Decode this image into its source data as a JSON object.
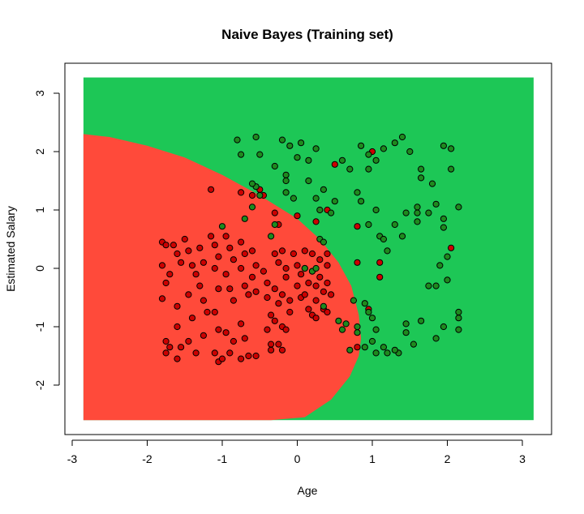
{
  "chart_data": {
    "type": "scatter",
    "title": "Naive Bayes (Training set)",
    "xlabel": "Age",
    "ylabel": "Estimated Salary",
    "xlim": [
      -3,
      3.3
    ],
    "ylim": [
      -2.8,
      3.5
    ],
    "x_ticks": [
      "-3",
      "-2",
      "-1",
      "0",
      "1",
      "2",
      "3"
    ],
    "y_ticks": [
      "-2",
      "-1",
      "0",
      "1",
      "2",
      "3"
    ],
    "region_extent": {
      "x": [
        -2.85,
        3.15
      ],
      "y": [
        -2.6,
        3.27
      ]
    },
    "decision_boundary": {
      "description": "ellipse-like boundary, red region on left",
      "points": [
        [
          -2.85,
          2.3
        ],
        [
          -2.5,
          2.25
        ],
        [
          -2.0,
          2.1
        ],
        [
          -1.5,
          1.9
        ],
        [
          -1.0,
          1.6
        ],
        [
          -0.5,
          1.25
        ],
        [
          0.0,
          0.85
        ],
        [
          0.3,
          0.5
        ],
        [
          0.55,
          0.1
        ],
        [
          0.72,
          -0.3
        ],
        [
          0.82,
          -0.8
        ],
        [
          0.85,
          -1.2
        ],
        [
          0.82,
          -1.5
        ],
        [
          0.7,
          -1.85
        ],
        [
          0.45,
          -2.25
        ],
        [
          0.1,
          -2.55
        ],
        [
          -0.35,
          -2.6
        ]
      ]
    },
    "colors": {
      "class_0_region": "#ff4a3a",
      "class_1_region": "#1dc756",
      "class_0_point": "#cc0000",
      "class_1_point": "#1e8a1e",
      "point_stroke": "#000000"
    },
    "series": [
      {
        "class": 0,
        "points": [
          [
            -1.8,
            0.45
          ],
          [
            -1.75,
            0.4
          ],
          [
            -1.8,
            0.05
          ],
          [
            -1.75,
            -0.25
          ],
          [
            -1.8,
            -0.52
          ],
          [
            -1.65,
            0.4
          ],
          [
            -1.6,
            0.25
          ],
          [
            -1.55,
            0.1
          ],
          [
            -1.7,
            -0.1
          ],
          [
            -1.6,
            -0.65
          ],
          [
            -1.6,
            -1.0
          ],
          [
            -1.75,
            -1.25
          ],
          [
            -1.7,
            -1.35
          ],
          [
            -1.75,
            -1.45
          ],
          [
            -1.55,
            -1.35
          ],
          [
            -1.6,
            -1.55
          ],
          [
            -1.5,
            0.5
          ],
          [
            -1.45,
            0.3
          ],
          [
            -1.4,
            0.05
          ],
          [
            -1.35,
            -0.1
          ],
          [
            -1.45,
            -0.45
          ],
          [
            -1.4,
            -0.85
          ],
          [
            -1.45,
            -1.25
          ],
          [
            -1.35,
            -1.45
          ],
          [
            -1.3,
            0.35
          ],
          [
            -1.25,
            0.1
          ],
          [
            -1.3,
            -0.3
          ],
          [
            -1.25,
            -0.55
          ],
          [
            -1.2,
            -0.75
          ],
          [
            -1.25,
            -1.15
          ],
          [
            -1.15,
            0.55
          ],
          [
            -1.1,
            0.4
          ],
          [
            -1.05,
            0.2
          ],
          [
            -1.1,
            0.0
          ],
          [
            -1.05,
            -0.35
          ],
          [
            -1.1,
            -0.75
          ],
          [
            -1.05,
            -1.05
          ],
          [
            -1.1,
            -1.45
          ],
          [
            -1.05,
            -1.6
          ],
          [
            -1.0,
            -1.55
          ],
          [
            -1.15,
            1.35
          ],
          [
            -0.95,
            0.55
          ],
          [
            -0.9,
            0.35
          ],
          [
            -0.85,
            0.15
          ],
          [
            -0.95,
            -0.1
          ],
          [
            -0.9,
            -0.35
          ],
          [
            -0.85,
            -0.55
          ],
          [
            -0.95,
            -1.1
          ],
          [
            -0.85,
            -1.25
          ],
          [
            -0.9,
            -1.45
          ],
          [
            -0.75,
            0.45
          ],
          [
            -0.7,
            0.25
          ],
          [
            -0.75,
            0.0
          ],
          [
            -0.7,
            -0.3
          ],
          [
            -0.65,
            -0.45
          ],
          [
            -0.75,
            -0.95
          ],
          [
            -0.7,
            -1.2
          ],
          [
            -0.75,
            -1.55
          ],
          [
            -0.6,
            0.3
          ],
          [
            -0.55,
            0.05
          ],
          [
            -0.6,
            -0.15
          ],
          [
            -0.55,
            -0.4
          ],
          [
            -0.65,
            -1.5
          ],
          [
            -0.55,
            -1.5
          ],
          [
            -0.5,
            1.35
          ],
          [
            -0.45,
            1.25
          ],
          [
            -0.45,
            -0.05
          ],
          [
            -0.4,
            -0.25
          ],
          [
            -0.4,
            -0.5
          ],
          [
            -0.35,
            -0.8
          ],
          [
            -0.4,
            -1.05
          ],
          [
            -0.35,
            -1.3
          ],
          [
            -0.35,
            -1.4
          ],
          [
            -0.3,
            0.95
          ],
          [
            -0.25,
            0.75
          ],
          [
            -0.3,
            0.25
          ],
          [
            -0.25,
            0.1
          ],
          [
            -0.3,
            -0.35
          ],
          [
            -0.25,
            -0.6
          ],
          [
            -0.3,
            -0.9
          ],
          [
            -0.2,
            -1.0
          ],
          [
            -0.25,
            -1.3
          ],
          [
            -0.2,
            -1.4
          ],
          [
            -0.2,
            0.3
          ],
          [
            -0.15,
            0.0
          ],
          [
            -0.15,
            -0.15
          ],
          [
            -0.2,
            -0.45
          ],
          [
            -0.1,
            -0.55
          ],
          [
            -0.1,
            -0.75
          ],
          [
            -0.15,
            -1.05
          ],
          [
            -0.05,
            0.25
          ],
          [
            0.0,
            0.05
          ],
          [
            0.05,
            -0.1
          ],
          [
            0.0,
            -0.3
          ],
          [
            0.05,
            -0.5
          ],
          [
            0.1,
            0.3
          ],
          [
            0.1,
            0.0
          ],
          [
            0.15,
            -0.25
          ],
          [
            0.1,
            -0.45
          ],
          [
            0.15,
            -0.7
          ],
          [
            0.2,
            0.25
          ],
          [
            0.2,
            -0.05
          ],
          [
            0.25,
            -0.3
          ],
          [
            0.25,
            -0.55
          ],
          [
            0.3,
            0.15
          ],
          [
            0.3,
            -0.15
          ],
          [
            0.35,
            -0.4
          ],
          [
            0.35,
            -0.7
          ],
          [
            0.4,
            0.25
          ],
          [
            0.4,
            0.05
          ],
          [
            0.4,
            -0.25
          ],
          [
            0.45,
            -0.45
          ],
          [
            0.2,
            -0.8
          ],
          [
            0.25,
            -0.85
          ],
          [
            0.4,
            -0.75
          ],
          [
            0.25,
            0.8
          ],
          [
            0.4,
            1.0
          ],
          [
            0.5,
            1.78
          ],
          [
            -0.75,
            1.3
          ],
          [
            0.8,
            0.72
          ],
          [
            0.8,
            0.1
          ],
          [
            1.1,
            0.1
          ],
          [
            1.1,
            -0.15
          ],
          [
            0.8,
            -1.35
          ],
          [
            0.95,
            -0.7
          ],
          [
            1.0,
            2.0
          ],
          [
            2.05,
            0.35
          ],
          [
            -0.6,
            1.25
          ],
          [
            0.0,
            0.9
          ]
        ]
      },
      {
        "class": 1,
        "points": [
          [
            -0.8,
            2.2
          ],
          [
            -0.55,
            2.25
          ],
          [
            -0.2,
            2.2
          ],
          [
            -0.1,
            2.1
          ],
          [
            0.05,
            2.15
          ],
          [
            -0.75,
            1.95
          ],
          [
            -0.5,
            1.95
          ],
          [
            0.0,
            1.9
          ],
          [
            0.25,
            2.05
          ],
          [
            0.15,
            1.85
          ],
          [
            -0.3,
            1.75
          ],
          [
            -0.15,
            1.6
          ],
          [
            -0.15,
            1.5
          ],
          [
            0.15,
            1.5
          ],
          [
            -0.05,
            1.2
          ],
          [
            0.25,
            1.2
          ],
          [
            0.35,
            1.35
          ],
          [
            0.5,
            1.15
          ],
          [
            -0.55,
            1.4
          ],
          [
            -0.6,
            1.45
          ],
          [
            -0.6,
            1.05
          ],
          [
            -0.7,
            0.85
          ],
          [
            -0.3,
            0.75
          ],
          [
            -0.35,
            0.55
          ],
          [
            -0.5,
            1.25
          ],
          [
            0.3,
            1.0
          ],
          [
            0.45,
            0.95
          ],
          [
            0.3,
            0.5
          ],
          [
            -1.0,
            0.72
          ],
          [
            -0.15,
            1.3
          ],
          [
            0.6,
            1.85
          ],
          [
            0.85,
            2.1
          ],
          [
            0.95,
            1.95
          ],
          [
            1.05,
            1.85
          ],
          [
            0.95,
            1.7
          ],
          [
            1.15,
            2.05
          ],
          [
            1.3,
            2.15
          ],
          [
            1.4,
            2.25
          ],
          [
            1.5,
            2.0
          ],
          [
            1.65,
            1.7
          ],
          [
            1.65,
            1.55
          ],
          [
            1.8,
            1.45
          ],
          [
            1.95,
            2.1
          ],
          [
            2.05,
            2.05
          ],
          [
            2.05,
            1.7
          ],
          [
            1.85,
            1.1
          ],
          [
            1.75,
            0.95
          ],
          [
            1.6,
            0.95
          ],
          [
            1.45,
            0.95
          ],
          [
            1.3,
            0.75
          ],
          [
            1.1,
            0.55
          ],
          [
            0.7,
            1.7
          ],
          [
            0.8,
            1.3
          ],
          [
            0.85,
            1.15
          ],
          [
            0.95,
            0.75
          ],
          [
            1.05,
            1.0
          ],
          [
            1.4,
            0.55
          ],
          [
            1.15,
            0.5
          ],
          [
            1.2,
            0.3
          ],
          [
            1.6,
            0.8
          ],
          [
            1.6,
            1.05
          ],
          [
            1.95,
            0.85
          ],
          [
            1.95,
            0.7
          ],
          [
            2.0,
            0.2
          ],
          [
            1.9,
            0.05
          ],
          [
            2.15,
            1.05
          ],
          [
            2.0,
            -0.2
          ],
          [
            1.85,
            -0.3
          ],
          [
            1.75,
            -0.3
          ],
          [
            1.85,
            -1.2
          ],
          [
            1.95,
            -1.0
          ],
          [
            2.15,
            -0.75
          ],
          [
            2.15,
            -0.85
          ],
          [
            2.15,
            -1.05
          ],
          [
            1.65,
            -0.9
          ],
          [
            1.55,
            -1.3
          ],
          [
            1.45,
            -1.1
          ],
          [
            1.35,
            -1.45
          ],
          [
            1.2,
            -1.45
          ],
          [
            1.15,
            -1.35
          ],
          [
            1.0,
            -0.85
          ],
          [
            1.05,
            -1.05
          ],
          [
            0.9,
            -1.35
          ],
          [
            0.8,
            -1.1
          ],
          [
            0.7,
            -1.4
          ],
          [
            0.65,
            -0.95
          ],
          [
            0.55,
            -0.9
          ],
          [
            0.6,
            -1.05
          ],
          [
            0.8,
            -1.0
          ],
          [
            0.95,
            -0.75
          ],
          [
            0.9,
            -0.6
          ],
          [
            0.75,
            -0.55
          ],
          [
            1.0,
            -1.25
          ],
          [
            1.05,
            -1.45
          ],
          [
            1.3,
            -1.4
          ],
          [
            1.45,
            -0.95
          ],
          [
            0.35,
            -0.65
          ],
          [
            0.2,
            -0.05
          ],
          [
            0.25,
            0.0
          ],
          [
            0.35,
            0.45
          ],
          [
            0.1,
            0.0
          ]
        ]
      }
    ]
  }
}
